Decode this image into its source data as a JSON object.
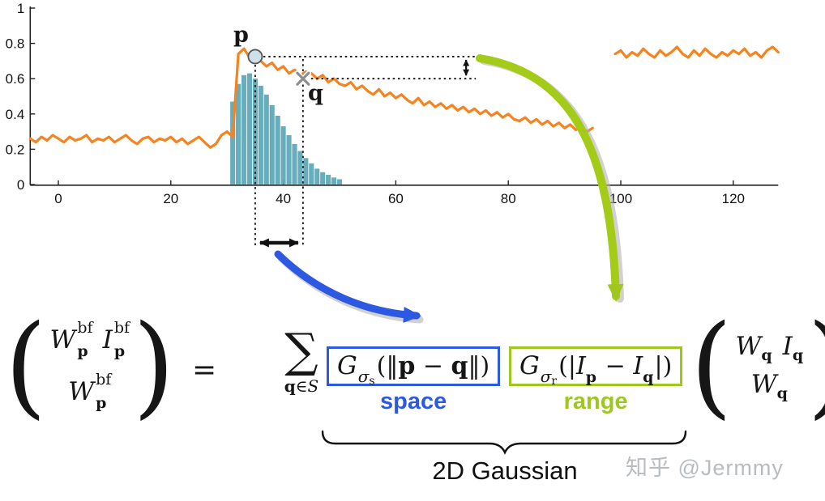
{
  "chart_data": {
    "type": "line",
    "title": "",
    "xlabel": "",
    "ylabel": "",
    "xlim": [
      -5,
      128
    ],
    "ylim": [
      0,
      1
    ],
    "x_ticks": [
      0,
      20,
      40,
      60,
      80,
      100,
      120
    ],
    "x_tick_labels": [
      "0",
      "20",
      "40",
      "60",
      "80",
      "100",
      "120"
    ],
    "y_ticks": [
      0,
      0.2,
      0.4,
      0.6,
      0.8,
      1
    ],
    "y_tick_labels": [
      "0",
      "0.2",
      "0.4",
      "0.6",
      "0.8",
      "1"
    ],
    "grid": false,
    "signal_color": "#f5831f",
    "kernel_color": "#5fa9b8",
    "p_point": {
      "x": 35,
      "y": 0.725,
      "label": "p"
    },
    "q_point": {
      "x": 43.5,
      "y": 0.6,
      "label": "q"
    },
    "i_arrow_x": 72.5,
    "segments": [
      [
        [
          -5,
          0.26
        ],
        [
          -4,
          0.24
        ],
        [
          -3,
          0.27
        ],
        [
          -2,
          0.25
        ],
        [
          -1,
          0.28
        ],
        [
          0,
          0.26
        ],
        [
          1,
          0.24
        ],
        [
          2,
          0.27
        ],
        [
          3,
          0.25
        ],
        [
          4,
          0.26
        ],
        [
          5,
          0.28
        ],
        [
          6,
          0.24
        ],
        [
          7,
          0.26
        ],
        [
          8,
          0.25
        ],
        [
          9,
          0.27
        ],
        [
          10,
          0.24
        ],
        [
          11,
          0.26
        ],
        [
          12,
          0.28
        ],
        [
          13,
          0.25
        ],
        [
          14,
          0.23
        ],
        [
          15,
          0.26
        ],
        [
          16,
          0.27
        ],
        [
          17,
          0.24
        ],
        [
          18,
          0.26
        ],
        [
          19,
          0.25
        ],
        [
          20,
          0.27
        ],
        [
          21,
          0.24
        ],
        [
          22,
          0.26
        ],
        [
          23,
          0.23
        ],
        [
          24,
          0.25
        ],
        [
          25,
          0.27
        ],
        [
          26,
          0.24
        ],
        [
          27,
          0.21
        ],
        [
          28,
          0.23
        ],
        [
          29,
          0.28
        ],
        [
          30,
          0.3
        ],
        [
          31,
          0.27
        ],
        [
          32,
          0.74
        ],
        [
          33,
          0.77
        ],
        [
          34,
          0.72
        ],
        [
          35,
          0.75
        ],
        [
          36,
          0.7
        ],
        [
          37,
          0.67
        ],
        [
          38,
          0.69
        ],
        [
          39,
          0.65
        ],
        [
          40,
          0.67
        ],
        [
          41,
          0.63
        ],
        [
          42,
          0.65
        ],
        [
          43,
          0.62
        ],
        [
          44,
          0.64
        ],
        [
          45,
          0.63
        ],
        [
          46,
          0.6
        ],
        [
          47,
          0.62
        ],
        [
          48,
          0.58
        ],
        [
          49,
          0.6
        ],
        [
          50,
          0.57
        ],
        [
          51,
          0.56
        ],
        [
          52,
          0.58
        ],
        [
          53,
          0.54
        ],
        [
          54,
          0.56
        ],
        [
          55,
          0.53
        ],
        [
          56,
          0.51
        ],
        [
          57,
          0.54
        ],
        [
          58,
          0.5
        ],
        [
          59,
          0.52
        ],
        [
          60,
          0.49
        ],
        [
          61,
          0.51
        ],
        [
          62,
          0.48
        ],
        [
          63,
          0.46
        ],
        [
          64,
          0.49
        ],
        [
          65,
          0.45
        ],
        [
          66,
          0.47
        ],
        [
          67,
          0.44
        ],
        [
          68,
          0.46
        ],
        [
          69,
          0.43
        ],
        [
          70,
          0.45
        ],
        [
          71,
          0.42
        ],
        [
          72,
          0.44
        ],
        [
          73,
          0.41
        ],
        [
          74,
          0.43
        ],
        [
          75,
          0.4
        ],
        [
          76,
          0.42
        ],
        [
          77,
          0.39
        ],
        [
          78,
          0.41
        ],
        [
          79,
          0.38
        ],
        [
          80,
          0.4
        ],
        [
          81,
          0.37
        ],
        [
          82,
          0.36
        ],
        [
          83,
          0.38
        ],
        [
          84,
          0.35
        ],
        [
          85,
          0.37
        ],
        [
          86,
          0.34
        ],
        [
          87,
          0.36
        ],
        [
          88,
          0.33
        ],
        [
          89,
          0.35
        ],
        [
          90,
          0.32
        ],
        [
          91,
          0.34
        ],
        [
          92,
          0.31
        ],
        [
          93,
          0.33
        ],
        [
          94,
          0.3
        ],
        [
          95,
          0.32
        ]
      ],
      [
        [
          99,
          0.74
        ],
        [
          100,
          0.76
        ],
        [
          101,
          0.72
        ],
        [
          102,
          0.75
        ],
        [
          103,
          0.73
        ],
        [
          104,
          0.77
        ],
        [
          105,
          0.74
        ],
        [
          106,
          0.72
        ],
        [
          107,
          0.76
        ],
        [
          108,
          0.73
        ],
        [
          109,
          0.75
        ],
        [
          110,
          0.78
        ],
        [
          111,
          0.74
        ],
        [
          112,
          0.72
        ],
        [
          113,
          0.76
        ],
        [
          114,
          0.73
        ],
        [
          115,
          0.77
        ],
        [
          116,
          0.74
        ],
        [
          117,
          0.72
        ],
        [
          118,
          0.75
        ],
        [
          119,
          0.73
        ],
        [
          120,
          0.76
        ],
        [
          121,
          0.74
        ],
        [
          122,
          0.77
        ],
        [
          123,
          0.73
        ],
        [
          124,
          0.75
        ],
        [
          125,
          0.72
        ],
        [
          126,
          0.76
        ],
        [
          127,
          0.78
        ],
        [
          128,
          0.75
        ]
      ]
    ],
    "kernel_bars": [
      [
        31,
        0.47
      ],
      [
        32,
        0.57
      ],
      [
        33,
        0.62
      ],
      [
        34,
        0.63
      ],
      [
        35,
        0.6
      ],
      [
        36,
        0.56
      ],
      [
        37,
        0.51
      ],
      [
        38,
        0.45
      ],
      [
        39,
        0.39
      ],
      [
        40,
        0.33
      ],
      [
        41,
        0.28
      ],
      [
        42,
        0.23
      ],
      [
        43,
        0.19
      ],
      [
        44,
        0.15
      ],
      [
        45,
        0.12
      ],
      [
        46,
        0.09
      ],
      [
        47,
        0.07
      ],
      [
        48,
        0.055
      ],
      [
        49,
        0.04
      ],
      [
        50,
        0.03
      ]
    ]
  },
  "formula": {
    "lparen": "(",
    "rparen": ")",
    "eq": "=",
    "lhs": {
      "W": "W",
      "I": "I",
      "bf": "bf",
      "p": "p"
    },
    "sum": {
      "op": "∑",
      "q": "q",
      "in": "∈",
      "S": "S"
    },
    "space": {
      "G": "G",
      "sigma": "σ",
      "s": "s",
      "open": "(‖",
      "p": "p",
      "minus": " − ",
      "q": "q",
      "close": "‖)"
    },
    "range": {
      "G": "G",
      "sigma": "σ",
      "r": "r",
      "open": "(|",
      "I": "I",
      "p": "p",
      "minus": " − ",
      "q": "q",
      "close": "|)"
    },
    "rhs": {
      "W": "W",
      "I": "I",
      "q": "q"
    }
  },
  "annotations": {
    "space_label": "space",
    "range_label": "range",
    "brace_label": "2D Gaussian",
    "watermark": "知乎 @Jermmy",
    "space_color": "#2d59e2",
    "range_color": "#9fc71f",
    "arrow_black": "#111111"
  }
}
